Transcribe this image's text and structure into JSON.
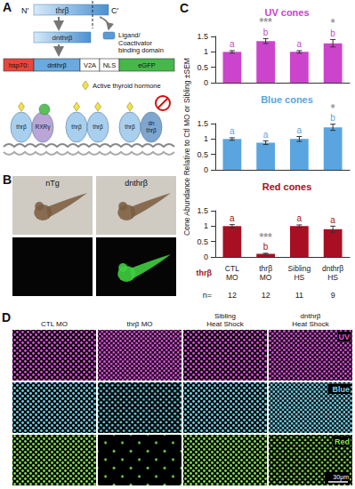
{
  "chart_data": [
    {
      "type": "bar",
      "title": "UV cones",
      "categories": [
        "CTL MO",
        "thrβ MO",
        "Sibling HS",
        "dnthrβ HS"
      ],
      "values": [
        1.0,
        1.35,
        1.0,
        1.28
      ],
      "errors": [
        0.04,
        0.08,
        0.04,
        0.12
      ],
      "letters": [
        "a",
        "b",
        "a",
        "b"
      ],
      "stars": [
        null,
        "***",
        null,
        "*"
      ],
      "color": "#cc44cc",
      "ylim": [
        0,
        1.5
      ],
      "yticks": [
        0,
        0.5,
        1,
        1.5
      ],
      "tick_labels": "y"
    },
    {
      "type": "bar",
      "title": "Blue cones",
      "categories": [
        "CTL MO",
        "thrβ MO",
        "Sibling HS",
        "dnthrβ HS"
      ],
      "values": [
        1.0,
        0.88,
        1.0,
        1.38
      ],
      "errors": [
        0.04,
        0.06,
        0.08,
        0.1
      ],
      "letters": [
        "a",
        "a",
        "a",
        "b"
      ],
      "stars": [
        null,
        null,
        null,
        "*"
      ],
      "color": "#5aa5e0",
      "ylim": [
        0,
        1.5
      ],
      "yticks": [
        0,
        0.5,
        1,
        1.5
      ],
      "tick_labels": "y"
    },
    {
      "type": "bar",
      "title": "Red cones",
      "categories": [
        "CTL MO",
        "thrβ MO",
        "Sibling HS",
        "dnthrβ HS"
      ],
      "values": [
        1.0,
        0.1,
        1.0,
        0.9
      ],
      "errors": [
        0.05,
        0.02,
        0.04,
        0.1
      ],
      "letters": [
        "a",
        "b",
        "a",
        "a"
      ],
      "stars": [
        null,
        "***",
        null,
        null
      ],
      "color": "#a80f22",
      "ylim": [
        0,
        1.5
      ],
      "yticks": [
        0,
        0.5,
        1,
        1.5
      ],
      "tick_labels": true
    }
  ],
  "panel_C": {
    "letter": "C",
    "y_label": "Cone Abundance Relative to Ctl MO or Sibling ±SEM",
    "row_label": "thrβ",
    "n_label": "n=",
    "n": [
      12,
      12,
      11,
      9
    ]
  },
  "panel_A": {
    "letter": "A",
    "protein": {
      "n_term": "N'",
      "name": "thrβ",
      "c_term": "C'"
    },
    "domain_label": "Ligand/ Coactivator binding domain",
    "truncated": "dnthrβ",
    "construct": [
      {
        "label": "hsp70:",
        "color": "#e8463c"
      },
      {
        "label": "dnthrβ",
        "color": "#6aaae0"
      },
      {
        "label": "V2A",
        "color": "#ffffff"
      },
      {
        "label": "NLS",
        "color": "#ffffff"
      },
      {
        "label": "eGFP",
        "color": "#46b84a"
      }
    ],
    "receptors": [
      [
        "thrβ",
        "RXRγ"
      ],
      [
        "thrβ",
        "thrβ"
      ],
      [
        "thrβ",
        "dn thrβ"
      ]
    ],
    "hormone_label": "Active thyroid hormone"
  },
  "panel_B": {
    "letter": "B",
    "labels": [
      "nTg",
      "dnthrβ"
    ]
  },
  "panel_D": {
    "letter": "D",
    "columns": [
      "CTL MO",
      "thrβ MO",
      "Sibling Heat Shock",
      "dnthrβ Heat Shock"
    ],
    "rows": [
      {
        "label": "UV",
        "color": "#e050e0"
      },
      {
        "label": "Blue",
        "color": "#72d2e8"
      },
      {
        "label": "Red",
        "color": "#84e052"
      }
    ],
    "scale_label": "30μm"
  }
}
